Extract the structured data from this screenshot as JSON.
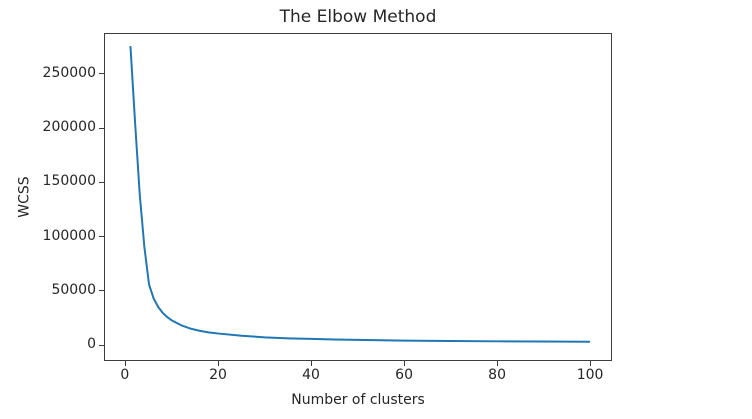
{
  "chart_data": {
    "type": "line",
    "title": "The Elbow Method",
    "xlabel": "Number of clusters",
    "ylabel": "WCSS",
    "series": [
      {
        "name": "WCSS",
        "x": [
          1,
          2,
          3,
          4,
          5,
          6,
          7,
          8,
          9,
          10,
          12,
          14,
          16,
          18,
          20,
          25,
          30,
          35,
          40,
          45,
          50,
          60,
          70,
          80,
          90,
          100
        ],
        "y": [
          275000,
          205000,
          138000,
          90000,
          55000,
          42000,
          34000,
          28500,
          24500,
          21500,
          17000,
          14000,
          12000,
          10500,
          9500,
          7500,
          6000,
          5100,
          4500,
          4000,
          3600,
          3000,
          2600,
          2300,
          2100,
          1900
        ],
        "color": "#1f77b4",
        "line_width": 2
      }
    ],
    "xticks": [
      0,
      20,
      40,
      60,
      80,
      100
    ],
    "yticks": [
      0,
      50000,
      100000,
      150000,
      200000,
      250000
    ],
    "xlim": [
      -4.5,
      104.7
    ],
    "ylim": [
      -15000,
      287000
    ],
    "grid": false,
    "legend_position": "none",
    "text_color": "#262626",
    "spine_color": "#3c3c3c",
    "background_color": "#ffffff"
  }
}
